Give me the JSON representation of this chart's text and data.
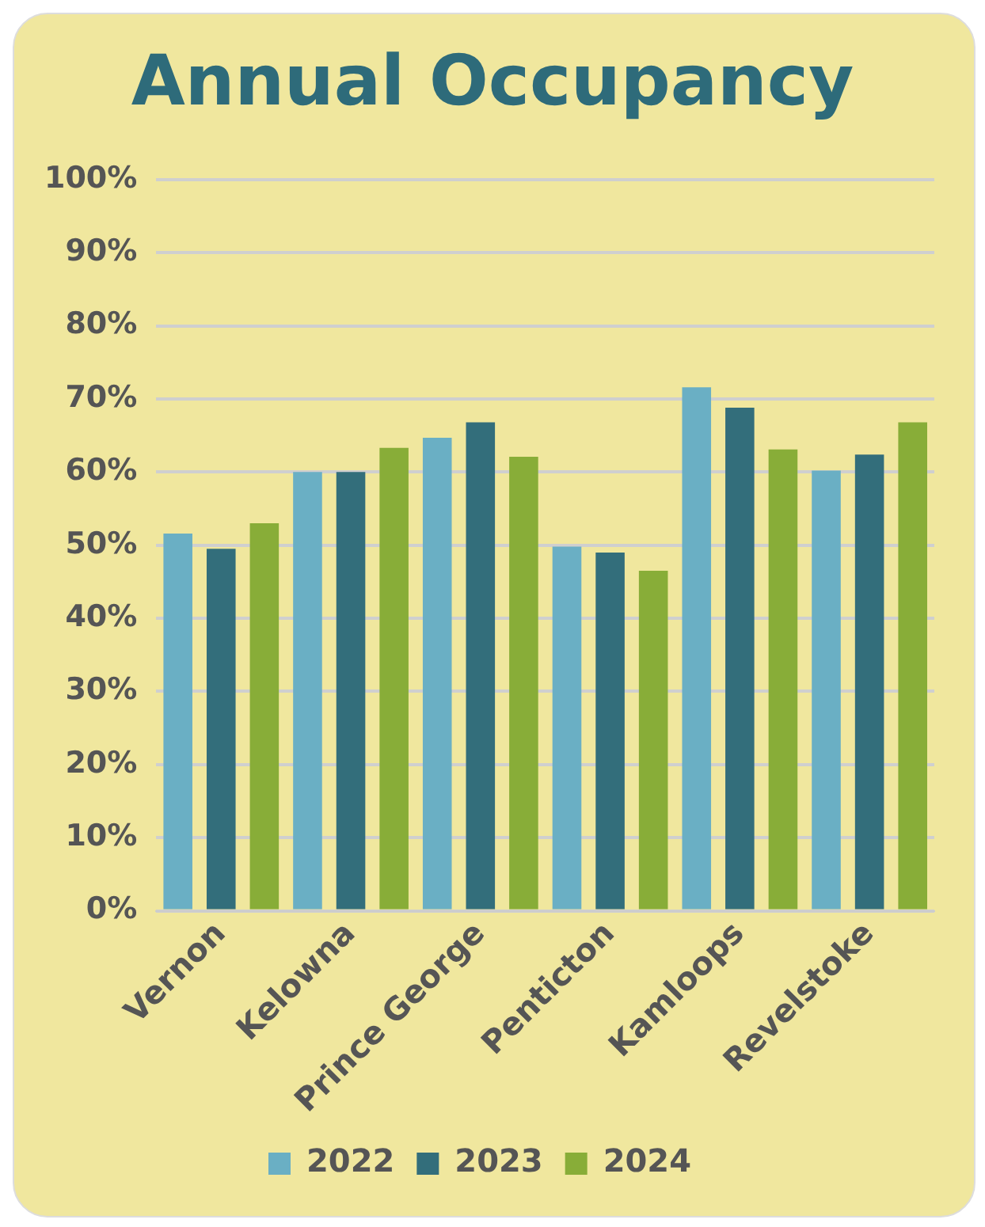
{
  "chart_data": {
    "type": "bar",
    "title": "Annual Occupancy",
    "categories": [
      "Vernon",
      "Kelowna",
      "Prince George",
      "Penticton",
      "Kamloops",
      "Revelstoke"
    ],
    "series": [
      {
        "name": "2022",
        "color": "#6aafc4",
        "values": [
          51.6,
          60,
          64.7,
          49.8,
          71.6,
          60.2
        ]
      },
      {
        "name": "2023",
        "color": "#336e7b",
        "values": [
          49.5,
          60,
          66.8,
          49,
          68.8,
          62.4
        ]
      },
      {
        "name": "2024",
        "color": "#88ad38",
        "values": [
          53,
          63.3,
          62.1,
          46.5,
          63.1,
          66.8
        ]
      }
    ],
    "ylim": [
      0,
      100
    ],
    "yticks": [
      {
        "value": 0,
        "label": "0%"
      },
      {
        "value": 10,
        "label": "10%"
      },
      {
        "value": 20,
        "label": "20%"
      },
      {
        "value": 30,
        "label": "30%"
      },
      {
        "value": 40,
        "label": "40%"
      },
      {
        "value": 50,
        "label": "50%"
      },
      {
        "value": 60,
        "label": "60%"
      },
      {
        "value": 70,
        "label": "70%"
      },
      {
        "value": 80,
        "label": "80%"
      },
      {
        "value": 90,
        "label": "90%"
      },
      {
        "value": 100,
        "label": "100%"
      }
    ],
    "grid": "y",
    "legend": "bottom"
  }
}
